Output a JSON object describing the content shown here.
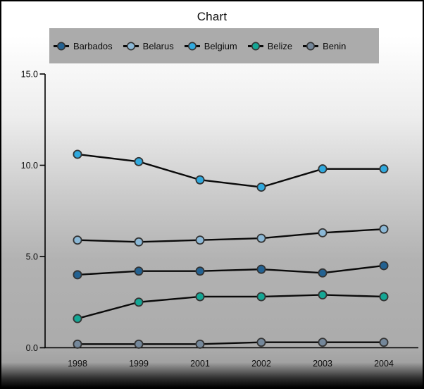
{
  "chart_data": {
    "type": "line",
    "title": "Chart",
    "categories": [
      "1998",
      "1999",
      "2001",
      "2002",
      "2003",
      "2004"
    ],
    "series": [
      {
        "name": "Barbados",
        "color": "#236292",
        "values": [
          4.0,
          4.2,
          4.2,
          4.3,
          4.1,
          4.5
        ]
      },
      {
        "name": "Belarus",
        "color": "#8bb8d6",
        "values": [
          5.9,
          5.8,
          5.9,
          6.0,
          6.3,
          6.5
        ]
      },
      {
        "name": "Belgium",
        "color": "#30a9de",
        "values": [
          10.6,
          10.2,
          9.2,
          8.8,
          9.8,
          9.8
        ]
      },
      {
        "name": "Belize",
        "color": "#14a795",
        "values": [
          1.6,
          2.5,
          2.8,
          2.8,
          2.9,
          2.8
        ]
      },
      {
        "name": "Benin",
        "color": "#74879a",
        "values": [
          0.2,
          0.2,
          0.2,
          0.3,
          0.3,
          0.3
        ]
      }
    ],
    "xlabel": "",
    "ylabel": "",
    "ylim": [
      0,
      15
    ],
    "ytick_labels": [
      "0.0",
      "5.0",
      "10.0",
      "15.0"
    ],
    "ytick_values": [
      0,
      5,
      10,
      15
    ],
    "grid": false,
    "legend_position": "top",
    "colors": {
      "line": "#0a0a0a",
      "axis": "#000000",
      "marker_outline": "#333333",
      "legend_background": "#ababab",
      "text": "#0c0c0c",
      "page_top": "#ffffff",
      "page_mid": "#ababab",
      "page_bottom": "#000000"
    }
  }
}
